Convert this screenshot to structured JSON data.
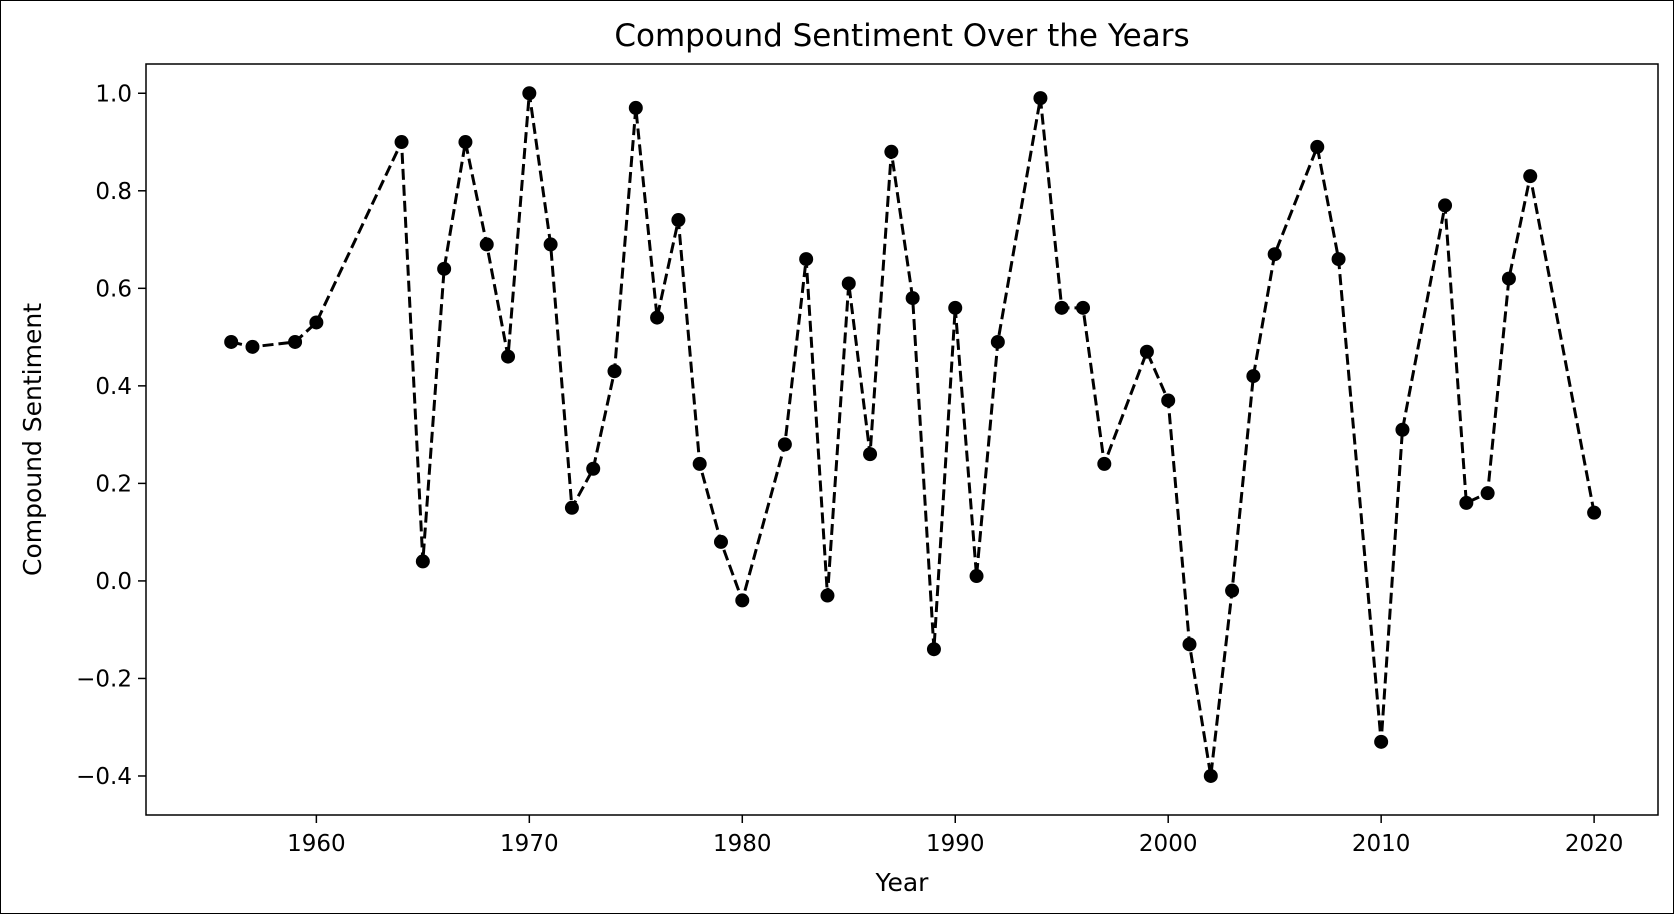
{
  "chart_data": {
    "type": "line",
    "title": "Compound Sentiment Over the Years",
    "xlabel": "Year",
    "ylabel": "Compound Sentiment",
    "xlim": [
      1952,
      2023
    ],
    "ylim": [
      -0.48,
      1.06
    ],
    "xticks": [
      1960,
      1970,
      1980,
      1990,
      2000,
      2010,
      2020
    ],
    "yticks": [
      -0.4,
      -0.2,
      0.0,
      0.2,
      0.4,
      0.6,
      0.8,
      1.0
    ],
    "ytick_labels": [
      "−0.4",
      "−0.2",
      "0.0",
      "0.2",
      "0.4",
      "0.6",
      "0.8",
      "1.0"
    ],
    "grid": false,
    "legend": "none",
    "line_style": "dashed",
    "marker": "circle",
    "color": "#000000",
    "series": [
      {
        "x": [
          1956,
          1957,
          1959,
          1960,
          1964,
          1965,
          1966,
          1967,
          1968,
          1969,
          1970,
          1971,
          1972,
          1973,
          1974,
          1975,
          1976,
          1977,
          1978,
          1979,
          1980,
          1982,
          1983,
          1984,
          1985,
          1986,
          1987,
          1988,
          1989,
          1990,
          1991,
          1992,
          1994,
          1995,
          1996,
          1997,
          1999,
          2000,
          2001,
          2002,
          2003,
          2004,
          2005,
          2007,
          2008,
          2010,
          2011,
          2013,
          2014,
          2015,
          2016,
          2017,
          2020
        ],
        "y": [
          0.49,
          0.48,
          0.49,
          0.53,
          0.9,
          0.04,
          0.64,
          0.9,
          0.69,
          0.46,
          1.0,
          0.69,
          0.15,
          0.23,
          0.43,
          0.97,
          0.54,
          0.74,
          0.24,
          0.08,
          -0.04,
          0.28,
          0.66,
          -0.03,
          0.61,
          0.26,
          0.88,
          0.58,
          -0.14,
          0.56,
          0.01,
          0.49,
          0.99,
          0.56,
          0.56,
          0.24,
          0.47,
          0.37,
          -0.13,
          -0.4,
          -0.02,
          0.42,
          0.67,
          0.89,
          0.66,
          -0.33,
          0.31,
          0.77,
          0.16,
          0.18,
          0.62,
          0.83,
          0.14
        ]
      }
    ]
  }
}
